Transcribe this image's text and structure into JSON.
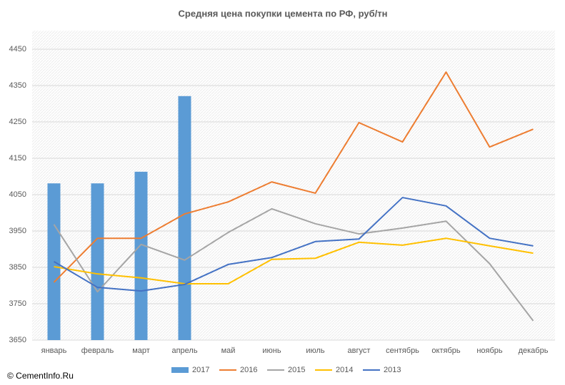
{
  "chart_data": {
    "type": "combo",
    "title": "Средняя цена покупки цемента по РФ, руб/тн",
    "categories": [
      "январь",
      "февраль",
      "март",
      "апрель",
      "май",
      "июнь",
      "июль",
      "август",
      "сентябрь",
      "октябрь",
      "ноябрь",
      "декабрь"
    ],
    "series": [
      {
        "name": "2017",
        "type": "bar",
        "color": "#5b9bd5",
        "values": [
          4081,
          4081,
          4113,
          4321,
          null,
          null,
          null,
          null,
          null,
          null,
          null,
          null
        ]
      },
      {
        "name": "2016",
        "type": "line",
        "color": "#ed7d31",
        "values": [
          3809,
          3930,
          3930,
          3997,
          4030,
          4085,
          4054,
          4248,
          4195,
          4387,
          4181,
          4230
        ]
      },
      {
        "name": "2015",
        "type": "line",
        "color": "#a5a5a5",
        "values": [
          3968,
          3783,
          3913,
          3870,
          3946,
          4011,
          3970,
          3942,
          3958,
          3977,
          3860,
          3703
        ]
      },
      {
        "name": "2014",
        "type": "line",
        "color": "#ffc000",
        "values": [
          3852,
          3832,
          3821,
          3805,
          3805,
          3872,
          3875,
          3919,
          3911,
          3930,
          3909,
          3889
        ]
      },
      {
        "name": "2013",
        "type": "line",
        "color": "#4472c4",
        "values": [
          3866,
          3795,
          3785,
          3803,
          3858,
          3877,
          3921,
          3928,
          4042,
          4019,
          3930,
          3909
        ]
      }
    ],
    "ylim": [
      3650,
      4500
    ],
    "yticks": [
      3650,
      3750,
      3850,
      3950,
      4050,
      4150,
      4250,
      4350,
      4450
    ],
    "grid": true,
    "legend": "bottom"
  },
  "copyright": "© CementInfo.Ru"
}
